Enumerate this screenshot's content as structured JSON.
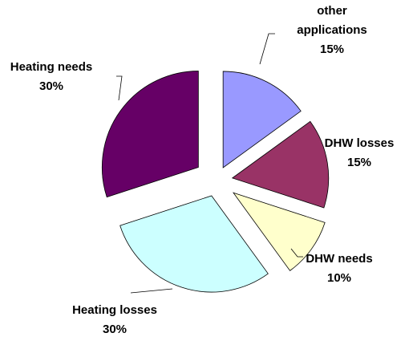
{
  "chart_data": {
    "type": "pie",
    "exploded": true,
    "title": "",
    "slices": [
      {
        "label_lines": [
          "other",
          "applications"
        ],
        "value": 15,
        "value_label": "15%",
        "color": "#9999ff"
      },
      {
        "label_lines": [
          "DHW losses"
        ],
        "value": 15,
        "value_label": "15%",
        "color": "#993366"
      },
      {
        "label_lines": [
          "DHW needs"
        ],
        "value": 10,
        "value_label": "10%",
        "color": "#ffffcc"
      },
      {
        "label_lines": [
          "Heating losses"
        ],
        "value": 30,
        "value_label": "30%",
        "color": "#ccffff"
      },
      {
        "label_lines": [
          "Heating needs"
        ],
        "value": 30,
        "value_label": "30%",
        "color": "#660066"
      }
    ],
    "legend": "none",
    "labels": "outside-with-leader-lines"
  }
}
